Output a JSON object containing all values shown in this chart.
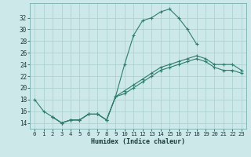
{
  "xlabel": "Humidex (Indice chaleur)",
  "bg_color": "#cce8e8",
  "line_color": "#2e7d6e",
  "grid_color": "#aacece",
  "x_ticks": [
    0,
    1,
    2,
    3,
    4,
    5,
    6,
    7,
    8,
    9,
    10,
    11,
    12,
    13,
    14,
    15,
    16,
    17,
    18,
    19,
    20,
    21,
    22,
    23
  ],
  "y_ticks": [
    14,
    16,
    18,
    20,
    22,
    24,
    26,
    28,
    30,
    32
  ],
  "ylim": [
    13.0,
    34.5
  ],
  "xlim": [
    -0.5,
    23.5
  ],
  "curve_arc": {
    "x": [
      0,
      1,
      2,
      3,
      4,
      5,
      6,
      7,
      8,
      9,
      10,
      11,
      12,
      13,
      14,
      15,
      16,
      17,
      18
    ],
    "y": [
      18,
      16,
      15,
      14,
      14.5,
      14.5,
      15.5,
      15.5,
      14.5,
      18.5,
      24,
      29,
      31.5,
      32,
      33,
      33.5,
      32,
      30,
      27.5
    ]
  },
  "curve_upper": {
    "x": [
      2,
      3,
      4,
      5,
      6,
      7,
      8,
      9,
      10,
      11,
      12,
      13,
      14,
      15,
      16,
      17,
      18,
      19,
      20,
      21,
      22,
      23
    ],
    "y": [
      15,
      14,
      14.5,
      14.5,
      15.5,
      15.5,
      14.5,
      18.5,
      19.5,
      20.5,
      21.5,
      22.5,
      23.5,
      24,
      24.5,
      25,
      25.5,
      25,
      24,
      24,
      24,
      23
    ]
  },
  "curve_lower": {
    "x": [
      2,
      3,
      4,
      5,
      6,
      7,
      8,
      9,
      10,
      11,
      12,
      13,
      14,
      15,
      16,
      17,
      18,
      19,
      20,
      21,
      22,
      23
    ],
    "y": [
      15,
      14,
      14.5,
      14.5,
      15.5,
      15.5,
      14.5,
      18.5,
      19,
      20,
      21,
      22,
      23,
      23.5,
      24,
      24.5,
      25,
      24.5,
      23.5,
      23,
      23,
      22.5
    ]
  }
}
